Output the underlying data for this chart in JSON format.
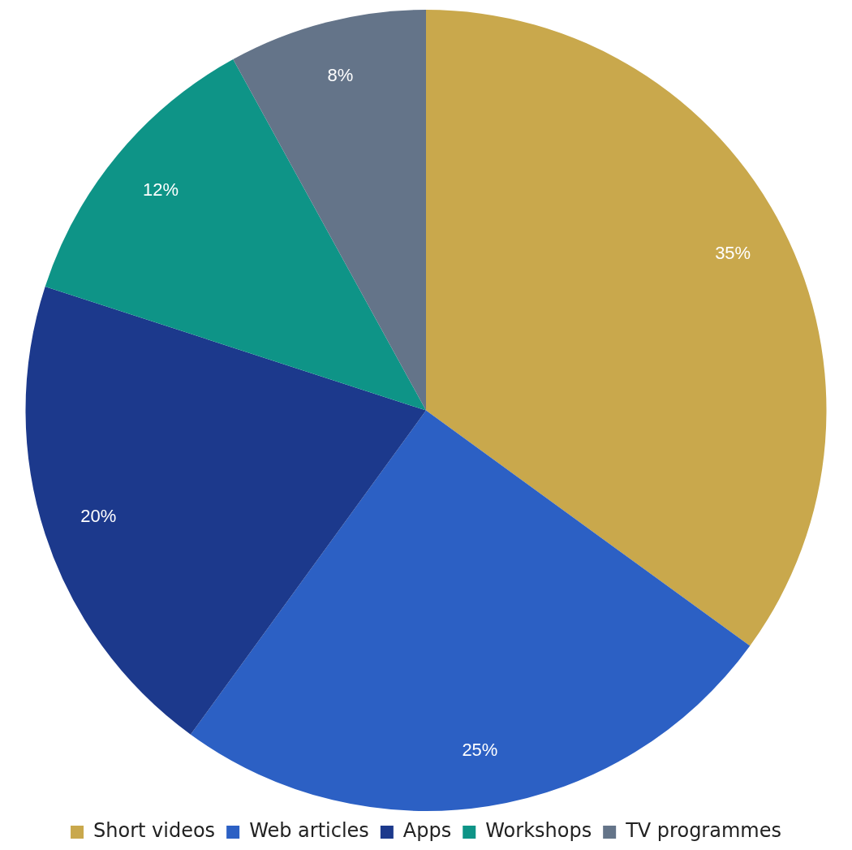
{
  "chart_data": {
    "type": "pie",
    "categories": [
      "Short videos",
      "Web articles",
      "Apps",
      "Workshops",
      "TV programmes"
    ],
    "values": [
      35,
      25,
      20,
      12,
      8
    ],
    "colors": [
      "#c9a84c",
      "#2c60c4",
      "#1c398c",
      "#0e9487",
      "#647489"
    ],
    "value_labels": [
      "35%",
      "25%",
      "20%",
      "12%",
      "8%"
    ],
    "legend": "bottom"
  }
}
